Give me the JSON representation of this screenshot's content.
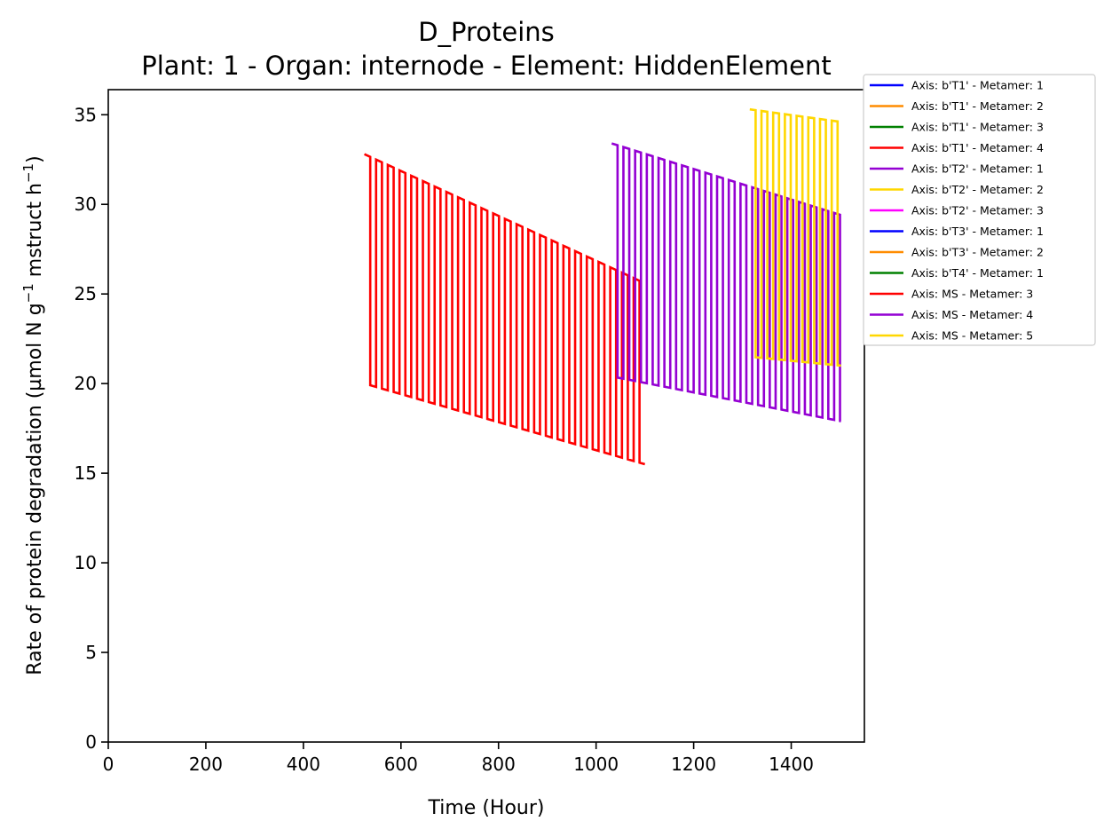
{
  "chart_data": {
    "type": "line",
    "title": "D_Proteins",
    "subtitle": "Plant: 1 - Organ: internode - Element: HiddenElement",
    "xlabel": "Time (Hour)",
    "ylabel_parts": [
      "Rate of protein degradation (µmol N g",
      "−1",
      " mstruct h",
      "−1",
      ")"
    ],
    "xlim": [
      0,
      1550
    ],
    "ylim": [
      0,
      36.4
    ],
    "xticks": [
      0,
      200,
      400,
      600,
      800,
      1000,
      1200,
      1400
    ],
    "yticks": [
      0,
      5,
      10,
      15,
      20,
      25,
      30,
      35
    ],
    "grid": false,
    "legend_position": "outside-top-right",
    "legend": [
      {
        "label": "Axis: b'T1' - Metamer: 1",
        "color": "#0000ff"
      },
      {
        "label": "Axis: b'T1' - Metamer: 2",
        "color": "#ff8c00"
      },
      {
        "label": "Axis: b'T1' - Metamer: 3",
        "color": "#008000"
      },
      {
        "label": "Axis: b'T1' - Metamer: 4",
        "color": "#ff0000"
      },
      {
        "label": "Axis: b'T2' - Metamer: 1",
        "color": "#9400d3"
      },
      {
        "label": "Axis: b'T2' - Metamer: 2",
        "color": "#ffd700"
      },
      {
        "label": "Axis: b'T2' - Metamer: 3",
        "color": "#ff00ff"
      },
      {
        "label": "Axis: b'T3' - Metamer: 1",
        "color": "#0000ff"
      },
      {
        "label": "Axis: b'T3' - Metamer: 2",
        "color": "#ff8c00"
      },
      {
        "label": "Axis: b'T4' - Metamer: 1",
        "color": "#008000"
      },
      {
        "label": "Axis: MS - Metamer: 3",
        "color": "#ff0000"
      },
      {
        "label": "Axis: MS - Metamer: 4",
        "color": "#9400d3"
      },
      {
        "label": "Axis: MS - Metamer: 5",
        "color": "#ffd700"
      }
    ],
    "series": [
      {
        "name": "Axis: MS - Metamer: 3",
        "color": "#ff0000",
        "x_start": 525,
        "x_end": 1100,
        "period_hours": 24,
        "high_hours": 12,
        "high_start": 32.8,
        "high_end": 25.6,
        "low_start": 20.0,
        "low_end": 15.5
      },
      {
        "name": "Axis: MS - Metamer: 4",
        "color": "#9400d3",
        "x_start": 1032,
        "x_end": 1502,
        "period_hours": 24,
        "high_hours": 12,
        "high_start": 33.4,
        "high_end": 29.4,
        "low_start": 20.4,
        "low_end": 17.9
      },
      {
        "name": "Axis: MS - Metamer: 5",
        "color": "#ffd700",
        "x_start": 1315,
        "x_end": 1502,
        "period_hours": 24,
        "high_hours": 12,
        "high_start": 35.3,
        "high_end": 34.6,
        "low_start": 21.5,
        "low_end": 21.0
      }
    ]
  }
}
